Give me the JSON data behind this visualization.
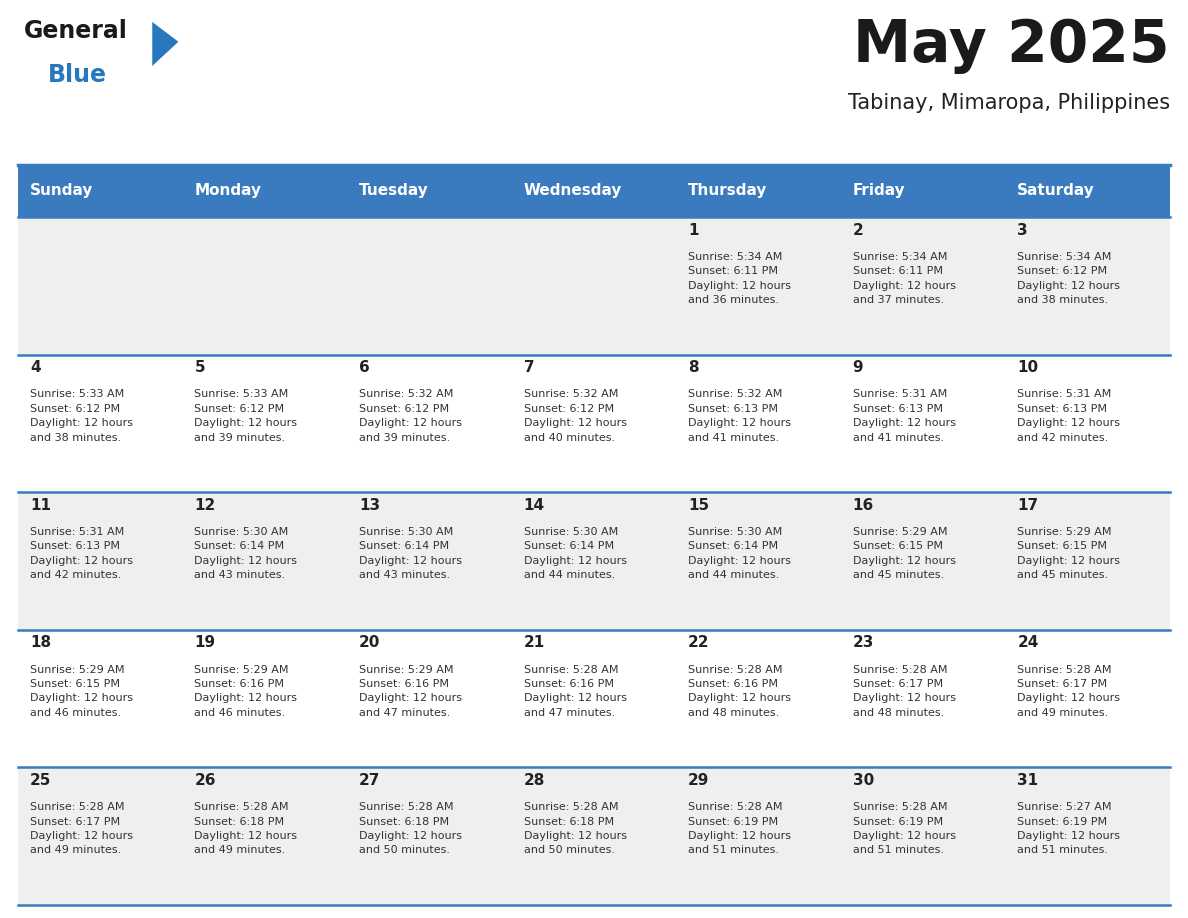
{
  "title": "May 2025",
  "subtitle": "Tabinay, Mimaropa, Philippines",
  "days_of_week": [
    "Sunday",
    "Monday",
    "Tuesday",
    "Wednesday",
    "Thursday",
    "Friday",
    "Saturday"
  ],
  "header_bg": "#3a7bbf",
  "header_text": "#ffffff",
  "row_bg_odd": "#efefef",
  "row_bg_even": "#ffffff",
  "separator_color": "#3a7bbf",
  "day_num_color": "#222222",
  "cell_text_color": "#333333",
  "title_color": "#1a1a1a",
  "subtitle_color": "#222222",
  "logo_black": "#1a1a1a",
  "logo_blue": "#2878be",
  "calendar": [
    [
      {
        "day": null,
        "sunrise": null,
        "sunset": null,
        "daylight": null
      },
      {
        "day": null,
        "sunrise": null,
        "sunset": null,
        "daylight": null
      },
      {
        "day": null,
        "sunrise": null,
        "sunset": null,
        "daylight": null
      },
      {
        "day": null,
        "sunrise": null,
        "sunset": null,
        "daylight": null
      },
      {
        "day": 1,
        "sunrise": "5:34 AM",
        "sunset": "6:11 PM",
        "daylight": "12 hours and 36 minutes."
      },
      {
        "day": 2,
        "sunrise": "5:34 AM",
        "sunset": "6:11 PM",
        "daylight": "12 hours and 37 minutes."
      },
      {
        "day": 3,
        "sunrise": "5:34 AM",
        "sunset": "6:12 PM",
        "daylight": "12 hours and 38 minutes."
      }
    ],
    [
      {
        "day": 4,
        "sunrise": "5:33 AM",
        "sunset": "6:12 PM",
        "daylight": "12 hours and 38 minutes."
      },
      {
        "day": 5,
        "sunrise": "5:33 AM",
        "sunset": "6:12 PM",
        "daylight": "12 hours and 39 minutes."
      },
      {
        "day": 6,
        "sunrise": "5:32 AM",
        "sunset": "6:12 PM",
        "daylight": "12 hours and 39 minutes."
      },
      {
        "day": 7,
        "sunrise": "5:32 AM",
        "sunset": "6:12 PM",
        "daylight": "12 hours and 40 minutes."
      },
      {
        "day": 8,
        "sunrise": "5:32 AM",
        "sunset": "6:13 PM",
        "daylight": "12 hours and 41 minutes."
      },
      {
        "day": 9,
        "sunrise": "5:31 AM",
        "sunset": "6:13 PM",
        "daylight": "12 hours and 41 minutes."
      },
      {
        "day": 10,
        "sunrise": "5:31 AM",
        "sunset": "6:13 PM",
        "daylight": "12 hours and 42 minutes."
      }
    ],
    [
      {
        "day": 11,
        "sunrise": "5:31 AM",
        "sunset": "6:13 PM",
        "daylight": "12 hours and 42 minutes."
      },
      {
        "day": 12,
        "sunrise": "5:30 AM",
        "sunset": "6:14 PM",
        "daylight": "12 hours and 43 minutes."
      },
      {
        "day": 13,
        "sunrise": "5:30 AM",
        "sunset": "6:14 PM",
        "daylight": "12 hours and 43 minutes."
      },
      {
        "day": 14,
        "sunrise": "5:30 AM",
        "sunset": "6:14 PM",
        "daylight": "12 hours and 44 minutes."
      },
      {
        "day": 15,
        "sunrise": "5:30 AM",
        "sunset": "6:14 PM",
        "daylight": "12 hours and 44 minutes."
      },
      {
        "day": 16,
        "sunrise": "5:29 AM",
        "sunset": "6:15 PM",
        "daylight": "12 hours and 45 minutes."
      },
      {
        "day": 17,
        "sunrise": "5:29 AM",
        "sunset": "6:15 PM",
        "daylight": "12 hours and 45 minutes."
      }
    ],
    [
      {
        "day": 18,
        "sunrise": "5:29 AM",
        "sunset": "6:15 PM",
        "daylight": "12 hours and 46 minutes."
      },
      {
        "day": 19,
        "sunrise": "5:29 AM",
        "sunset": "6:16 PM",
        "daylight": "12 hours and 46 minutes."
      },
      {
        "day": 20,
        "sunrise": "5:29 AM",
        "sunset": "6:16 PM",
        "daylight": "12 hours and 47 minutes."
      },
      {
        "day": 21,
        "sunrise": "5:28 AM",
        "sunset": "6:16 PM",
        "daylight": "12 hours and 47 minutes."
      },
      {
        "day": 22,
        "sunrise": "5:28 AM",
        "sunset": "6:16 PM",
        "daylight": "12 hours and 48 minutes."
      },
      {
        "day": 23,
        "sunrise": "5:28 AM",
        "sunset": "6:17 PM",
        "daylight": "12 hours and 48 minutes."
      },
      {
        "day": 24,
        "sunrise": "5:28 AM",
        "sunset": "6:17 PM",
        "daylight": "12 hours and 49 minutes."
      }
    ],
    [
      {
        "day": 25,
        "sunrise": "5:28 AM",
        "sunset": "6:17 PM",
        "daylight": "12 hours and 49 minutes."
      },
      {
        "day": 26,
        "sunrise": "5:28 AM",
        "sunset": "6:18 PM",
        "daylight": "12 hours and 49 minutes."
      },
      {
        "day": 27,
        "sunrise": "5:28 AM",
        "sunset": "6:18 PM",
        "daylight": "12 hours and 50 minutes."
      },
      {
        "day": 28,
        "sunrise": "5:28 AM",
        "sunset": "6:18 PM",
        "daylight": "12 hours and 50 minutes."
      },
      {
        "day": 29,
        "sunrise": "5:28 AM",
        "sunset": "6:19 PM",
        "daylight": "12 hours and 51 minutes."
      },
      {
        "day": 30,
        "sunrise": "5:28 AM",
        "sunset": "6:19 PM",
        "daylight": "12 hours and 51 minutes."
      },
      {
        "day": 31,
        "sunrise": "5:27 AM",
        "sunset": "6:19 PM",
        "daylight": "12 hours and 51 minutes."
      }
    ]
  ]
}
